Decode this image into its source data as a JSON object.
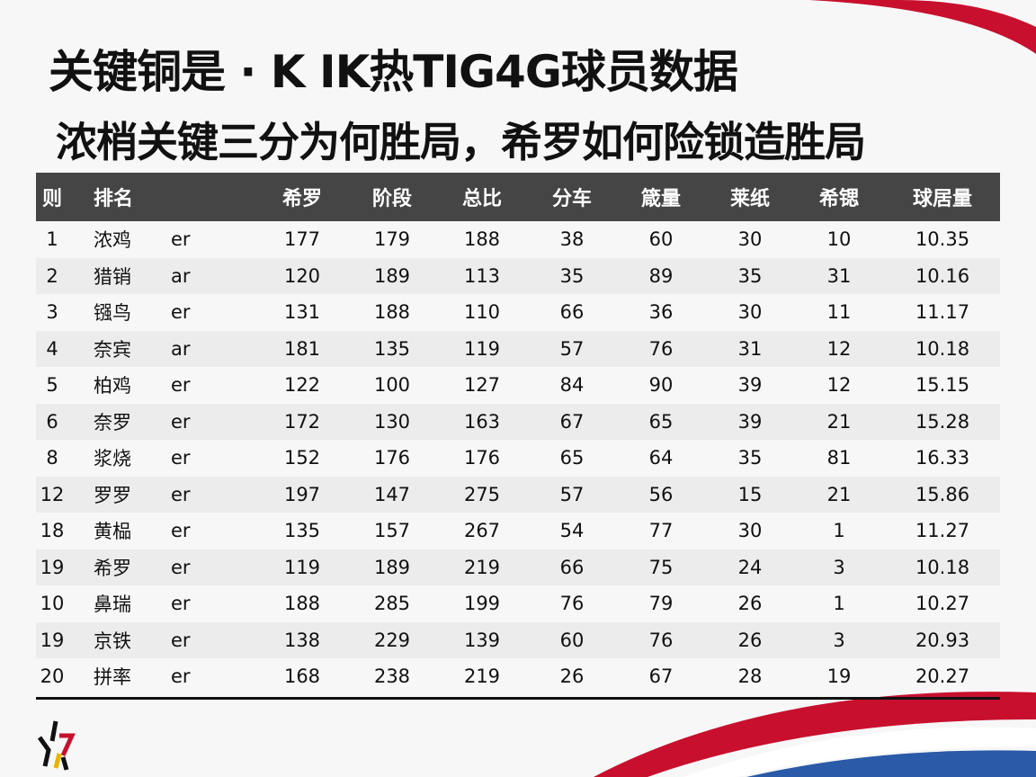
{
  "title": "关键铜是 · K IK热TIG4G球员数据",
  "subtitle": "浓梢关键三分为何胜局，希罗如何险锁造胜局",
  "colors": {
    "header_bg": "#454545",
    "accent_red": "#c8102e",
    "accent_blue": "#2a5aa8",
    "row_alt": "#ececec"
  },
  "table": {
    "headers": [
      "则",
      "排名",
      "",
      "希罗",
      "阶段",
      "总比",
      "分车",
      "箴量",
      "莱纸",
      "希锶",
      "球居量"
    ],
    "rows": [
      [
        "1",
        "浓鸡",
        "er",
        "177",
        "179",
        "188",
        "38",
        "60",
        "30",
        "10",
        "10.35"
      ],
      [
        "2",
        "猎销",
        "ar",
        "120",
        "189",
        "113",
        "35",
        "89",
        "35",
        "31",
        "10.16"
      ],
      [
        "3",
        "镪鸟",
        "er",
        "131",
        "188",
        "110",
        "66",
        "36",
        "30",
        "11",
        "11.17"
      ],
      [
        "4",
        "奈宾",
        "ar",
        "181",
        "135",
        "119",
        "57",
        "76",
        "31",
        "12",
        "10.18"
      ],
      [
        "5",
        "柏鸡",
        "er",
        "122",
        "100",
        "127",
        "84",
        "90",
        "39",
        "12",
        "15.15"
      ],
      [
        "6",
        "奈罗",
        "er",
        "172",
        "130",
        "163",
        "67",
        "65",
        "39",
        "21",
        "15.28"
      ],
      [
        "8",
        "浆烧",
        "er",
        "152",
        "176",
        "176",
        "65",
        "64",
        "35",
        "81",
        "16.33"
      ],
      [
        "12",
        "罗罗",
        "er",
        "197",
        "147",
        "275",
        "57",
        "56",
        "15",
        "21",
        "15.86"
      ],
      [
        "18",
        "黄榀",
        "er",
        "135",
        "157",
        "267",
        "54",
        "77",
        "30",
        "1",
        "11.27"
      ],
      [
        "19",
        "希罗",
        "er",
        "119",
        "189",
        "219",
        "66",
        "75",
        "24",
        "3",
        "10.18"
      ],
      [
        "10",
        "鼻瑞",
        "er",
        "188",
        "285",
        "199",
        "76",
        "79",
        "26",
        "1",
        "10.27"
      ],
      [
        "19",
        "京铁",
        "er",
        "138",
        "229",
        "139",
        "60",
        "76",
        "26",
        "3",
        "20.93"
      ],
      [
        "20",
        "拼率",
        "er",
        "168",
        "238",
        "219",
        "26",
        "67",
        "28",
        "19",
        "20.27"
      ]
    ]
  },
  "logo": {
    "icon": "star-logo-icon"
  }
}
